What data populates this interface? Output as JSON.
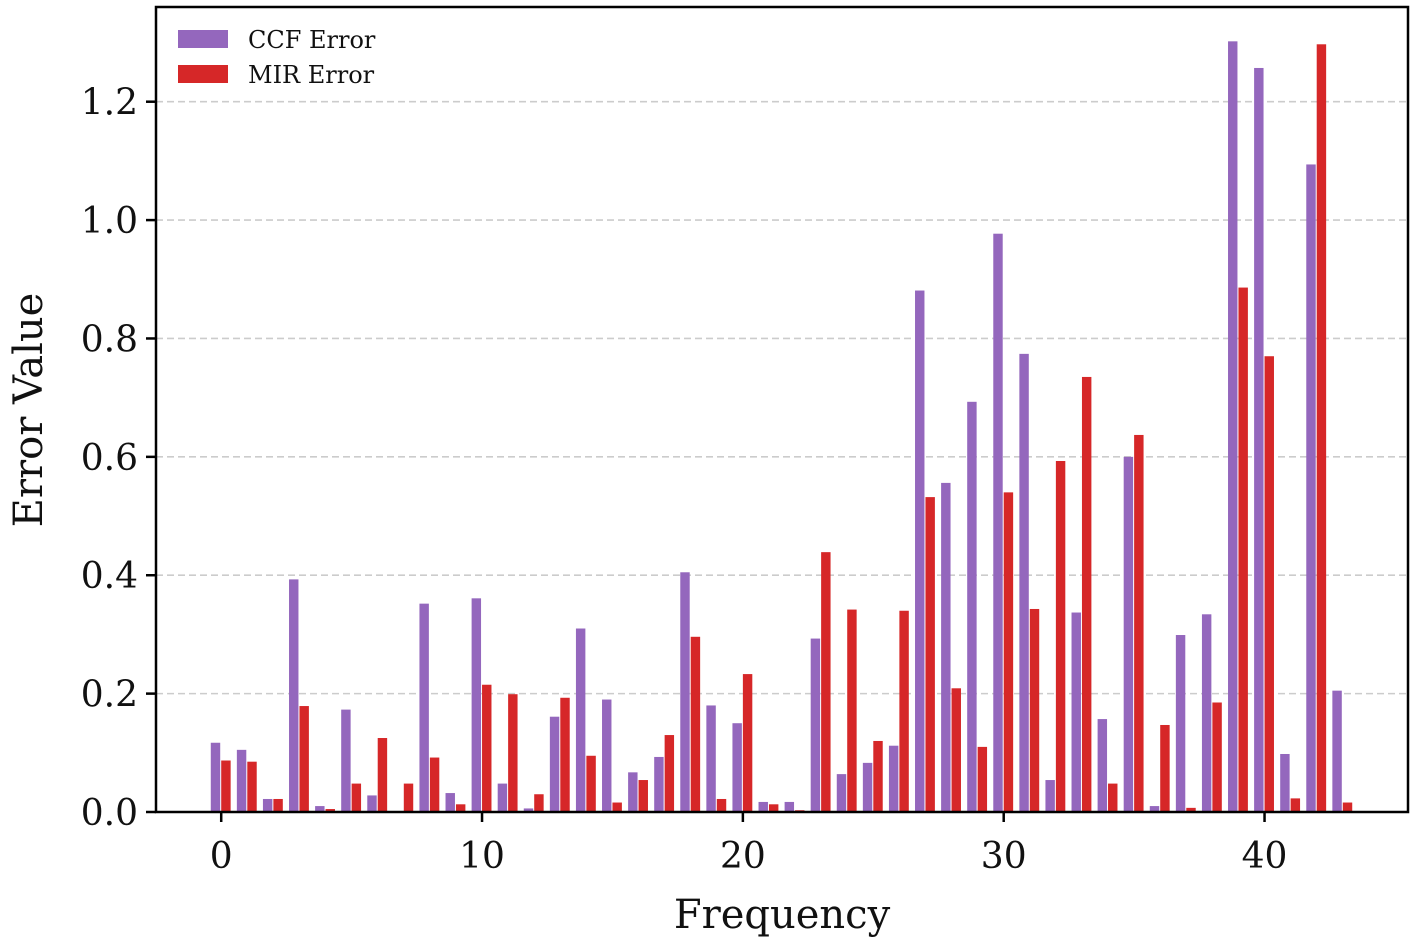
{
  "chart_data": {
    "type": "bar",
    "title": "",
    "xlabel": "Frequency",
    "ylabel": "Error Value",
    "x": [
      0,
      1,
      2,
      3,
      4,
      5,
      6,
      7,
      8,
      9,
      10,
      11,
      12,
      13,
      14,
      15,
      16,
      17,
      18,
      19,
      20,
      21,
      22,
      23,
      24,
      25,
      26,
      27,
      28,
      29,
      30,
      31,
      32,
      33,
      34,
      35,
      36,
      37,
      38,
      39,
      40,
      41,
      42,
      43
    ],
    "xlim": [
      -2.5,
      45.5
    ],
    "ylim": [
      0,
      1.36
    ],
    "xticks": [
      0,
      10,
      20,
      30,
      40
    ],
    "xtick_labels": [
      "0",
      "10",
      "20",
      "30",
      "40"
    ],
    "yticks": [
      0.0,
      0.2,
      0.4,
      0.6,
      0.8,
      1.0,
      1.2
    ],
    "ytick_labels": [
      "0.0",
      "0.2",
      "0.4",
      "0.6",
      "0.8",
      "1.0",
      "1.2"
    ],
    "grid": "y dashed",
    "legend_position": "top-left",
    "series": [
      {
        "name": "CCF Error",
        "color": "#9467bd",
        "values": [
          0.117,
          0.105,
          0.022,
          0.393,
          0.01,
          0.173,
          0.028,
          0.0,
          0.352,
          0.032,
          0.361,
          0.048,
          0.006,
          0.161,
          0.31,
          0.19,
          0.067,
          0.093,
          0.405,
          0.18,
          0.15,
          0.017,
          0.017,
          0.293,
          0.064,
          0.083,
          0.112,
          0.881,
          0.556,
          0.693,
          0.977,
          0.774,
          0.054,
          0.337,
          0.157,
          0.6,
          0.01,
          0.299,
          0.334,
          1.302,
          1.257,
          0.098,
          1.094,
          0.205
        ]
      },
      {
        "name": "MIR Error",
        "color": "#d62728",
        "values": [
          0.087,
          0.085,
          0.022,
          0.179,
          0.005,
          0.048,
          0.125,
          0.048,
          0.092,
          0.013,
          0.215,
          0.199,
          0.03,
          0.193,
          0.095,
          0.016,
          0.054,
          0.13,
          0.296,
          0.022,
          0.233,
          0.013,
          0.003,
          0.439,
          0.342,
          0.12,
          0.34,
          0.532,
          0.209,
          0.11,
          0.54,
          0.343,
          0.593,
          0.735,
          0.048,
          0.637,
          0.147,
          0.007,
          0.185,
          0.886,
          0.77,
          0.023,
          1.297,
          0.016
        ]
      }
    ]
  }
}
